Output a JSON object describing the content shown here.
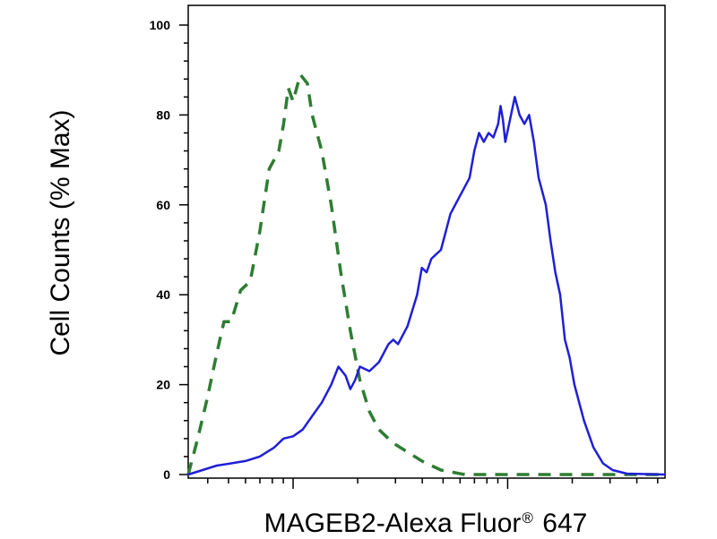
{
  "chart_data": {
    "type": "line",
    "title": "",
    "ylabel": "Cell Counts (% Max)",
    "xlabel_main": "MAGEB2-Alexa Fluor",
    "xlabel_sup": "®",
    "xlabel_tail": " 647",
    "ylim": [
      0,
      100
    ],
    "xlim": [
      0,
      1
    ],
    "y_ticks": [
      "0",
      "20",
      "40",
      "60",
      "80",
      "100"
    ],
    "x_ticks_major": [
      0.22,
      0.67
    ],
    "grid": false,
    "legend": "none",
    "series": [
      {
        "color": "#2e7d32",
        "style": "dashed",
        "points": [
          [
            0.0,
            0
          ],
          [
            0.02,
            8
          ],
          [
            0.04,
            17
          ],
          [
            0.06,
            27
          ],
          [
            0.075,
            34
          ],
          [
            0.09,
            34
          ],
          [
            0.11,
            41
          ],
          [
            0.13,
            43
          ],
          [
            0.15,
            54
          ],
          [
            0.17,
            68
          ],
          [
            0.19,
            72
          ],
          [
            0.2,
            78
          ],
          [
            0.21,
            86
          ],
          [
            0.22,
            83
          ],
          [
            0.235,
            89
          ],
          [
            0.25,
            87
          ],
          [
            0.26,
            80
          ],
          [
            0.28,
            72
          ],
          [
            0.3,
            60
          ],
          [
            0.32,
            45
          ],
          [
            0.34,
            32
          ],
          [
            0.36,
            21
          ],
          [
            0.38,
            14
          ],
          [
            0.4,
            10
          ],
          [
            0.43,
            7
          ],
          [
            0.46,
            5
          ],
          [
            0.49,
            3
          ],
          [
            0.53,
            1
          ],
          [
            0.58,
            0
          ],
          [
            0.7,
            0
          ],
          [
            1.0,
            0
          ]
        ]
      },
      {
        "color": "#1f1fd6",
        "style": "solid",
        "points": [
          [
            0.0,
            0
          ],
          [
            0.03,
            1
          ],
          [
            0.06,
            2
          ],
          [
            0.09,
            2.5
          ],
          [
            0.12,
            3
          ],
          [
            0.15,
            4
          ],
          [
            0.18,
            6
          ],
          [
            0.2,
            8
          ],
          [
            0.22,
            8.5
          ],
          [
            0.24,
            10
          ],
          [
            0.26,
            13
          ],
          [
            0.28,
            16
          ],
          [
            0.3,
            20
          ],
          [
            0.315,
            24
          ],
          [
            0.33,
            22
          ],
          [
            0.34,
            19
          ],
          [
            0.35,
            21
          ],
          [
            0.36,
            24
          ],
          [
            0.38,
            23
          ],
          [
            0.4,
            25
          ],
          [
            0.42,
            29
          ],
          [
            0.43,
            30
          ],
          [
            0.44,
            29
          ],
          [
            0.46,
            33
          ],
          [
            0.48,
            40
          ],
          [
            0.49,
            46
          ],
          [
            0.5,
            45
          ],
          [
            0.51,
            48
          ],
          [
            0.53,
            50
          ],
          [
            0.55,
            58
          ],
          [
            0.57,
            62
          ],
          [
            0.59,
            66
          ],
          [
            0.6,
            72
          ],
          [
            0.61,
            76
          ],
          [
            0.62,
            74
          ],
          [
            0.63,
            76
          ],
          [
            0.64,
            75
          ],
          [
            0.65,
            78
          ],
          [
            0.655,
            82
          ],
          [
            0.66,
            79
          ],
          [
            0.665,
            74
          ],
          [
            0.675,
            79
          ],
          [
            0.685,
            84
          ],
          [
            0.695,
            80
          ],
          [
            0.705,
            78
          ],
          [
            0.715,
            80
          ],
          [
            0.725,
            74
          ],
          [
            0.735,
            66
          ],
          [
            0.75,
            60
          ],
          [
            0.76,
            52
          ],
          [
            0.77,
            45
          ],
          [
            0.78,
            40
          ],
          [
            0.79,
            30
          ],
          [
            0.8,
            26
          ],
          [
            0.81,
            20
          ],
          [
            0.83,
            12
          ],
          [
            0.85,
            6
          ],
          [
            0.87,
            2.5
          ],
          [
            0.89,
            1
          ],
          [
            0.92,
            0.2
          ],
          [
            1.0,
            0
          ]
        ]
      }
    ]
  }
}
